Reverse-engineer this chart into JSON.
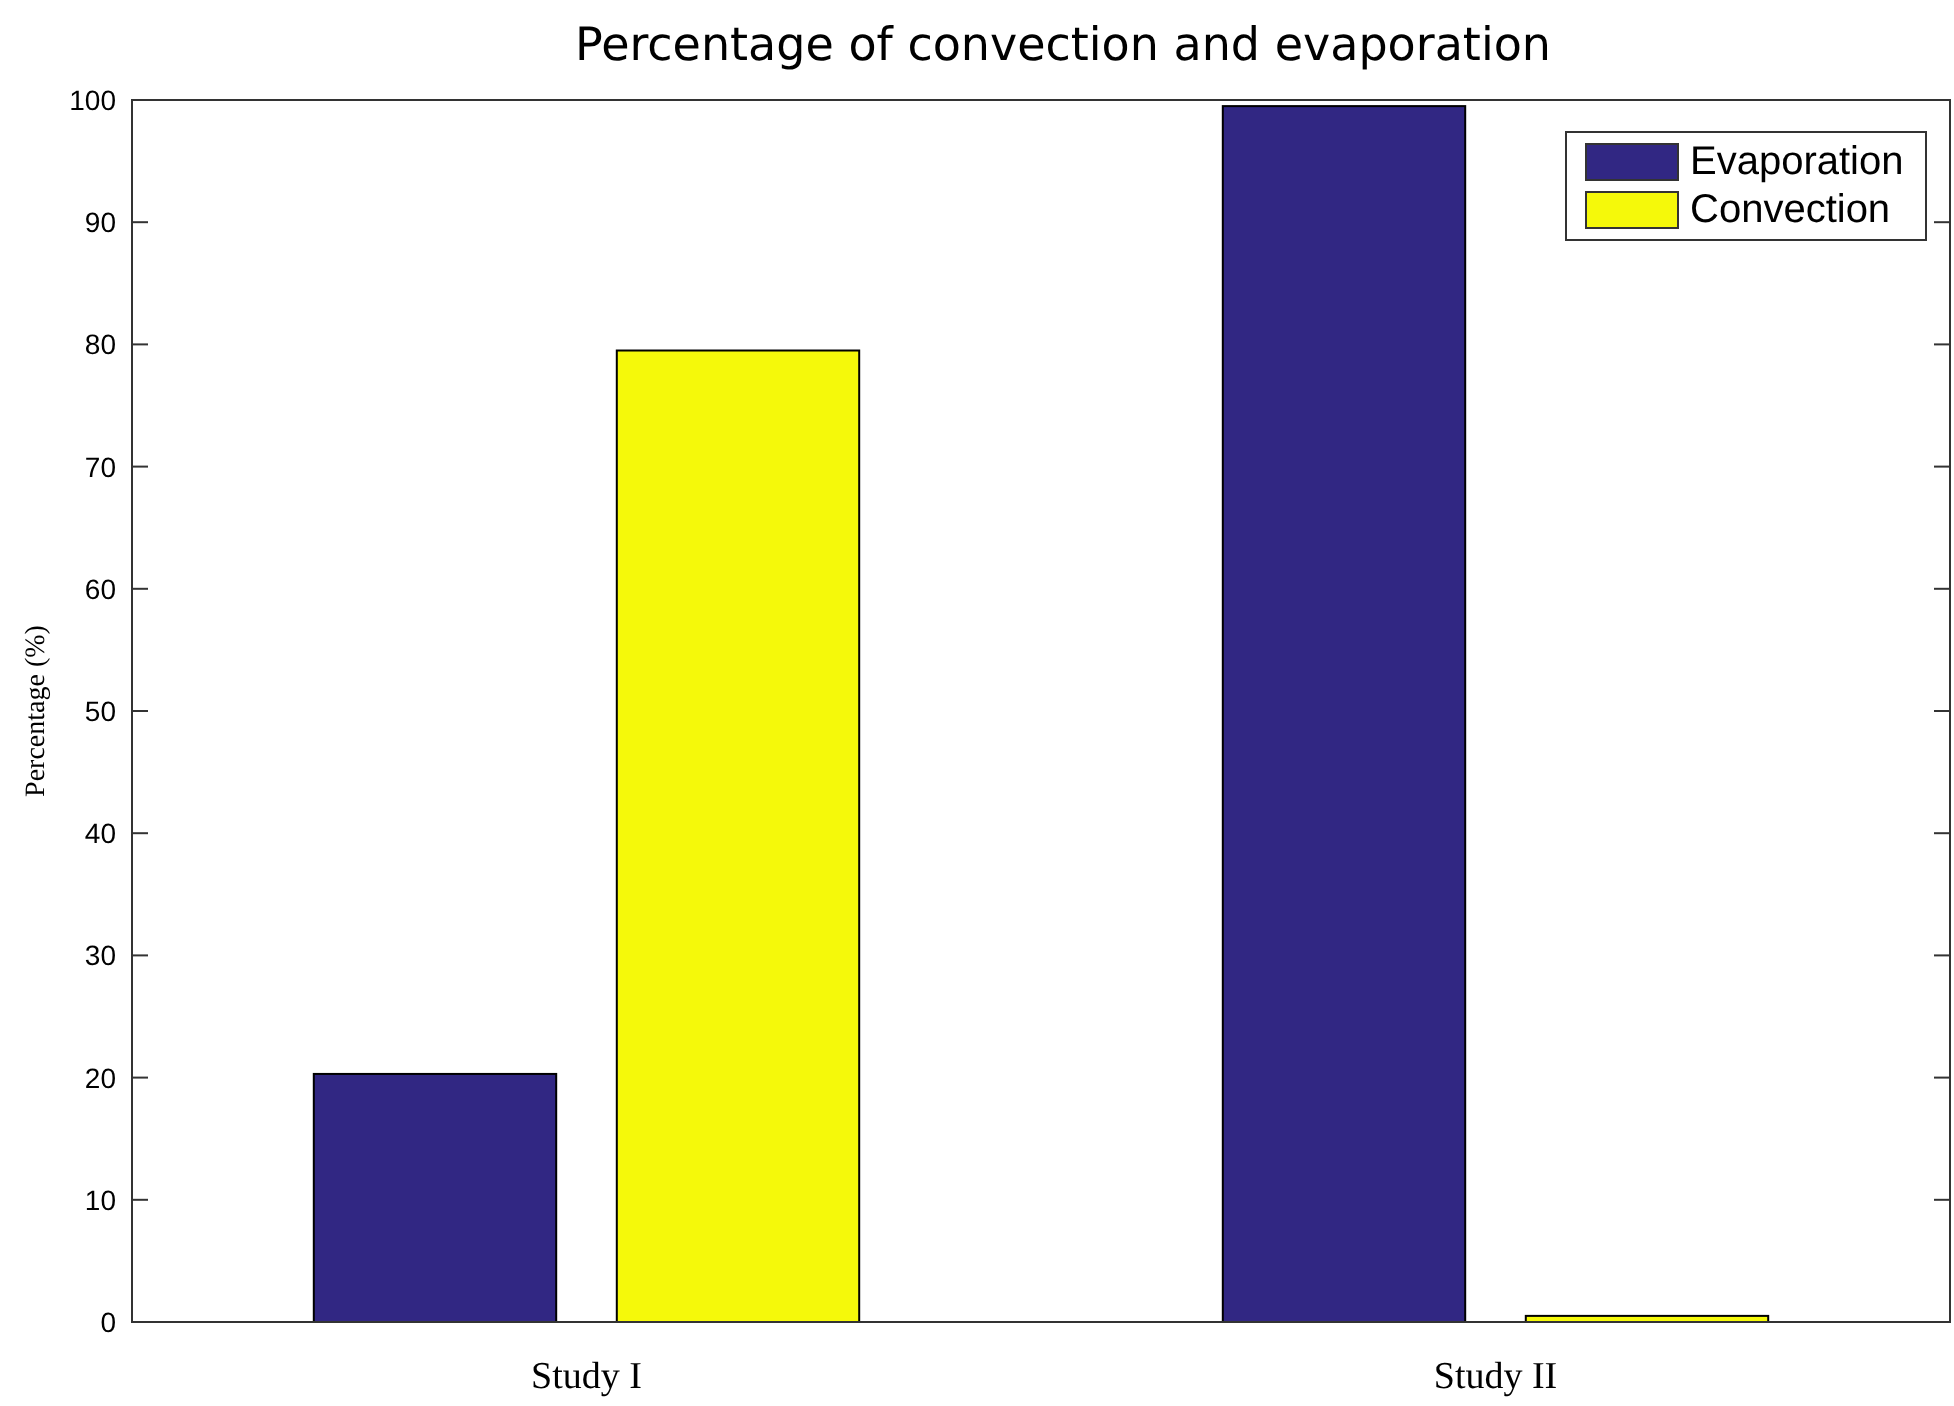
{
  "chart_data": {
    "type": "bar",
    "title": "Percentage of convection and evaporation",
    "ylabel": "Percentage (%)",
    "categories": [
      "Study I",
      "Study II"
    ],
    "series": [
      {
        "name": "Evaporation",
        "color": "#312783",
        "values": [
          20.3,
          99.5
        ]
      },
      {
        "name": "Convection",
        "color": "#f5f90a",
        "values": [
          79.5,
          0.5
        ]
      }
    ],
    "ylim": [
      0,
      100
    ],
    "yticks": [
      0,
      10,
      20,
      30,
      40,
      50,
      60,
      70,
      80,
      90,
      100
    ],
    "grid": false,
    "legend": "top right"
  }
}
